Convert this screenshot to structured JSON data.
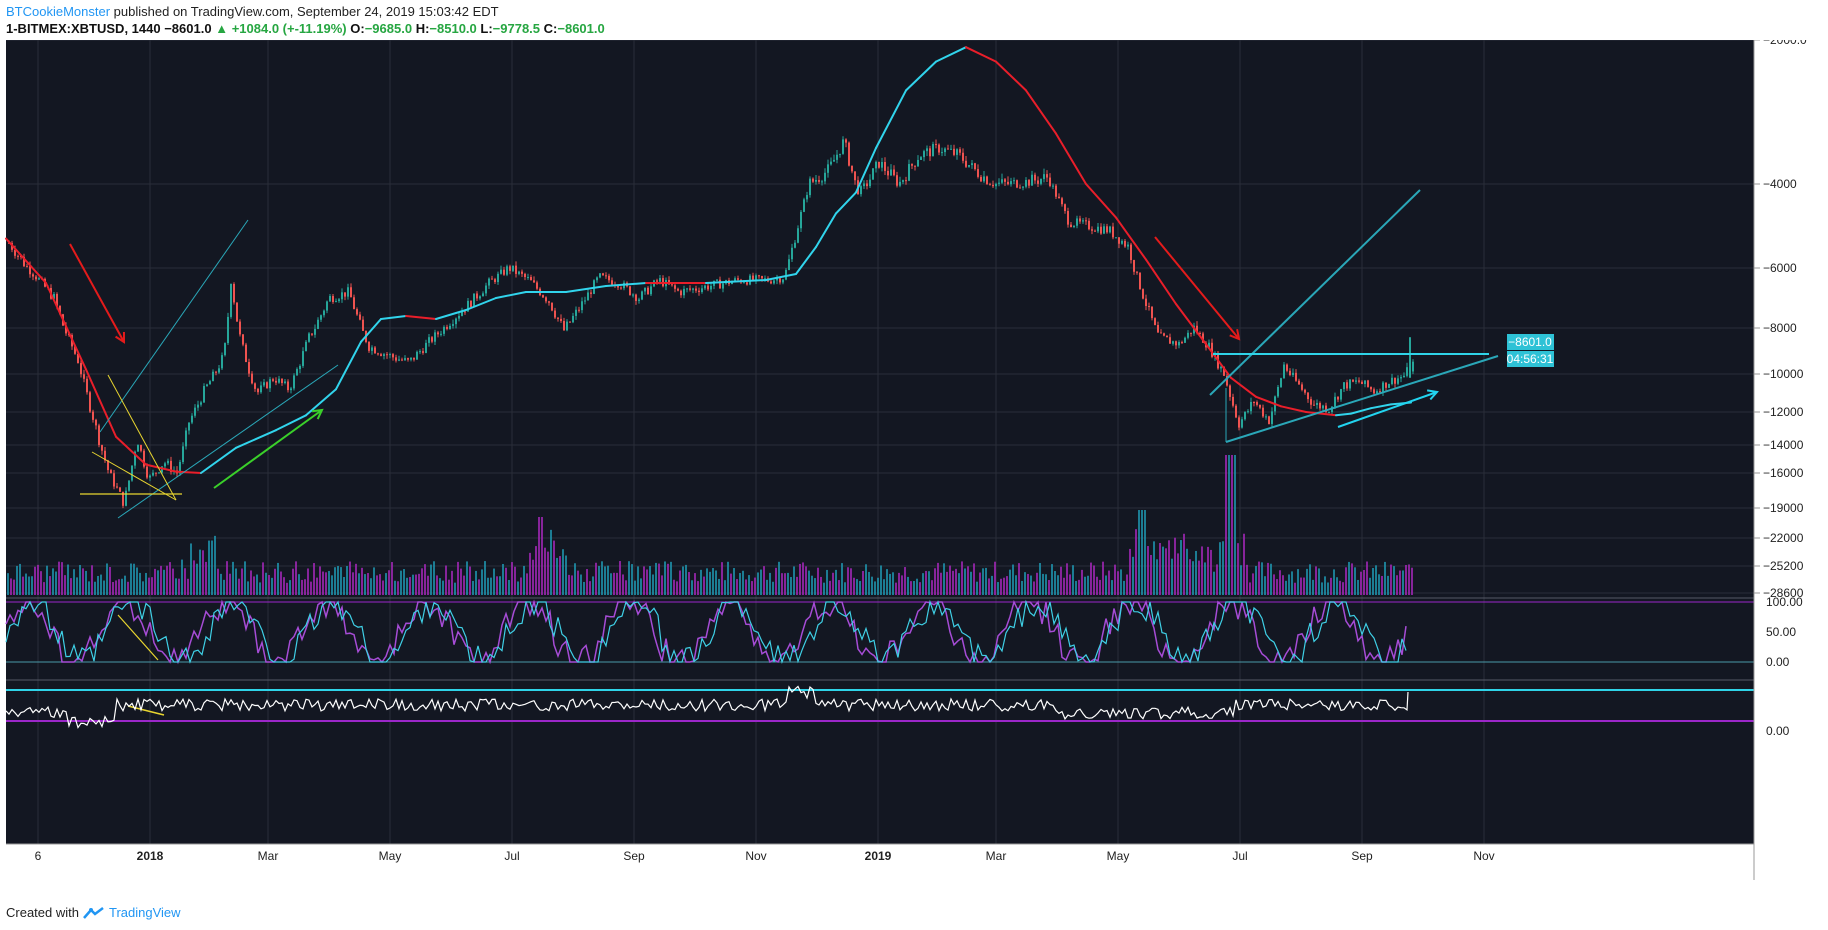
{
  "header": {
    "author": "BTCookieMonster",
    "published_text": "published on TradingView.com, September 24, 2019 15:03:42 EDT"
  },
  "ohlc": {
    "symbol": "1-BITMEX:XBTUSD, 1440",
    "last": "−8601.0",
    "arrow": "▲",
    "change": "+1084.0 (+-11.19%)",
    "o_label": "O:",
    "o_value": "−9685.0",
    "h_label": "H:",
    "h_value": "−8510.0",
    "l_label": "L:",
    "l_value": "−9778.5",
    "c_label": "C:",
    "c_value": "−8601.0"
  },
  "footer": {
    "created_with": "Created with",
    "brand": "TradingView"
  },
  "colors": {
    "background": "#131722",
    "ma_up": "#31d4ec",
    "ma_down": "#e91e2a",
    "candle_up": "#26a69a",
    "candle_down": "#ef5350",
    "volume_up": "#1f8fa8",
    "volume_down": "#9c27b0",
    "stoch_k": "#3fd0e6",
    "stoch_d": "#a64cd6",
    "rsi_line": "#ffffff",
    "level_top": "#2fd3e8",
    "level_bottom": "#9b27c9",
    "trend_red": "#e41b1b",
    "trend_green": "#3ad02a",
    "trend_cyan": "#22d4f0",
    "triangle_yellow": "#e8d530"
  },
  "chart_data": [
    {
      "type": "line",
      "name": "price",
      "y_axis": "inverted",
      "x_ticks": [
        "6",
        "2018",
        "Mar",
        "May",
        "Jul",
        "Sep",
        "Nov",
        "2019",
        "Mar",
        "May",
        "Jul",
        "Sep",
        "Nov"
      ],
      "y_ticks": [
        "−2000.0",
        "−4000",
        "−6000",
        "−8000",
        "−10000",
        "−12000",
        "−14000",
        "−16000",
        "−19000",
        "−22000",
        "−25200",
        "−28600"
      ],
      "last_price_label": "−8601.0",
      "countdown_label": "04:56:31",
      "price_points": [
        [
          0,
          -5400
        ],
        [
          25,
          -6200
        ],
        [
          45,
          -7000
        ],
        [
          70,
          -9500
        ],
        [
          85,
          -12500
        ],
        [
          100,
          -16000
        ],
        [
          115,
          -18600
        ],
        [
          128,
          -13500
        ],
        [
          140,
          -16500
        ],
        [
          155,
          -15200
        ],
        [
          168,
          -16000
        ],
        [
          180,
          -12600
        ],
        [
          195,
          -10900
        ],
        [
          215,
          -9200
        ],
        [
          222,
          -6400
        ],
        [
          232,
          -8600
        ],
        [
          248,
          -11000
        ],
        [
          265,
          -10200
        ],
        [
          280,
          -10800
        ],
        [
          300,
          -8400
        ],
        [
          320,
          -7000
        ],
        [
          340,
          -6800
        ],
        [
          360,
          -8800
        ],
        [
          380,
          -9200
        ],
        [
          400,
          -9500
        ],
        [
          420,
          -8600
        ],
        [
          440,
          -7800
        ],
        [
          460,
          -7200
        ],
        [
          480,
          -6500
        ],
        [
          500,
          -6000
        ],
        [
          520,
          -6400
        ],
        [
          540,
          -7100
        ],
        [
          555,
          -8100
        ],
        [
          575,
          -7100
        ],
        [
          590,
          -6300
        ],
        [
          610,
          -6500
        ],
        [
          630,
          -7000
        ],
        [
          650,
          -6400
        ],
        [
          670,
          -6800
        ],
        [
          700,
          -6600
        ],
        [
          730,
          -6400
        ],
        [
          760,
          -6400
        ],
        [
          775,
          -6300
        ],
        [
          790,
          -4900
        ],
        [
          800,
          -4000
        ],
        [
          820,
          -3800
        ],
        [
          835,
          -3400
        ],
        [
          850,
          -4200
        ],
        [
          870,
          -3700
        ],
        [
          890,
          -4000
        ],
        [
          910,
          -3600
        ],
        [
          930,
          -3500
        ],
        [
          950,
          -3600
        ],
        [
          965,
          -3800
        ],
        [
          985,
          -4000
        ],
        [
          1010,
          -4000
        ],
        [
          1040,
          -3900
        ],
        [
          1060,
          -4900
        ],
        [
          1080,
          -5000
        ],
        [
          1100,
          -5100
        ],
        [
          1120,
          -5500
        ],
        [
          1135,
          -7000
        ],
        [
          1150,
          -8400
        ],
        [
          1170,
          -8700
        ],
        [
          1185,
          -8000
        ],
        [
          1200,
          -8800
        ],
        [
          1215,
          -10000
        ],
        [
          1230,
          -12700
        ],
        [
          1245,
          -11400
        ],
        [
          1260,
          -12500
        ],
        [
          1275,
          -9600
        ],
        [
          1290,
          -10600
        ],
        [
          1305,
          -11600
        ],
        [
          1320,
          -11800
        ],
        [
          1335,
          -10600
        ],
        [
          1350,
          -10400
        ],
        [
          1365,
          -10900
        ],
        [
          1380,
          -10400
        ],
        [
          1395,
          -10100
        ],
        [
          1405,
          -9500
        ],
        [
          1408,
          -8601
        ]
      ],
      "ma_points": [
        [
          0,
          -5300
        ],
        [
          40,
          -6500
        ],
        [
          80,
          -9800
        ],
        [
          110,
          -13500
        ],
        [
          140,
          -15400
        ],
        [
          170,
          -15900
        ],
        [
          195,
          -16000
        ],
        [
          230,
          -14200
        ],
        [
          270,
          -13100
        ],
        [
          300,
          -12200
        ],
        [
          330,
          -10800
        ],
        [
          355,
          -8600
        ],
        [
          375,
          -7700
        ],
        [
          400,
          -7600
        ],
        [
          430,
          -7700
        ],
        [
          460,
          -7400
        ],
        [
          490,
          -7000
        ],
        [
          520,
          -6800
        ],
        [
          560,
          -6800
        ],
        [
          600,
          -6600
        ],
        [
          640,
          -6500
        ],
        [
          700,
          -6500
        ],
        [
          760,
          -6400
        ],
        [
          790,
          -6200
        ],
        [
          810,
          -5500
        ],
        [
          830,
          -4700
        ],
        [
          850,
          -4200
        ],
        [
          870,
          -3500
        ],
        [
          900,
          -2700
        ],
        [
          930,
          -2300
        ],
        [
          960,
          -2100
        ],
        [
          990,
          -2300
        ],
        [
          1020,
          -2700
        ],
        [
          1050,
          -3300
        ],
        [
          1080,
          -4000
        ],
        [
          1110,
          -4800
        ],
        [
          1140,
          -5800
        ],
        [
          1170,
          -7200
        ],
        [
          1200,
          -8700
        ],
        [
          1225,
          -10200
        ],
        [
          1250,
          -11200
        ],
        [
          1275,
          -11700
        ],
        [
          1300,
          -12000
        ],
        [
          1330,
          -12200
        ],
        [
          1345,
          -12100
        ],
        [
          1365,
          -11800
        ],
        [
          1385,
          -11600
        ],
        [
          1405,
          -11500
        ]
      ]
    },
    {
      "type": "bar",
      "name": "volume"
    },
    {
      "type": "line",
      "name": "stochastic",
      "y_ticks": [
        "100.00",
        "50.00",
        "0.00"
      ],
      "ylim": [
        0,
        100
      ]
    },
    {
      "type": "line",
      "name": "rsi",
      "y_ticks": [
        "0.00"
      ]
    }
  ]
}
